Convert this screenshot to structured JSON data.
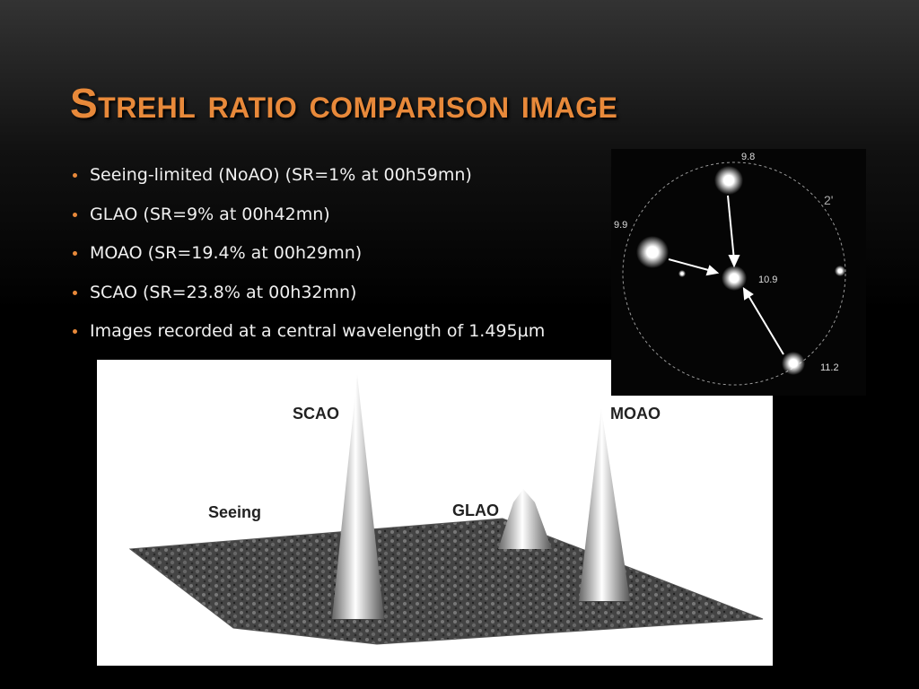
{
  "header": {
    "title": "Strehl ratio comparison image"
  },
  "bullets": [
    "Seeing-limited (NoAO) (SR=1% at 00h59mn)",
    "GLAO (SR=9% at 00h42mn)",
    "MOAO (SR=19.4% at 00h29mn)",
    "SCAO (SR=23.8% at 00h32mn)",
    "Images recorded at a central wavelength of 1.495µm"
  ],
  "star_field": {
    "labels": [
      "9.8",
      "9.9",
      "10.9",
      "11.2",
      "2'"
    ]
  },
  "surface_plot": {
    "labels": [
      "SCAO",
      "MOAO",
      "Seeing",
      "GLAO"
    ]
  }
}
